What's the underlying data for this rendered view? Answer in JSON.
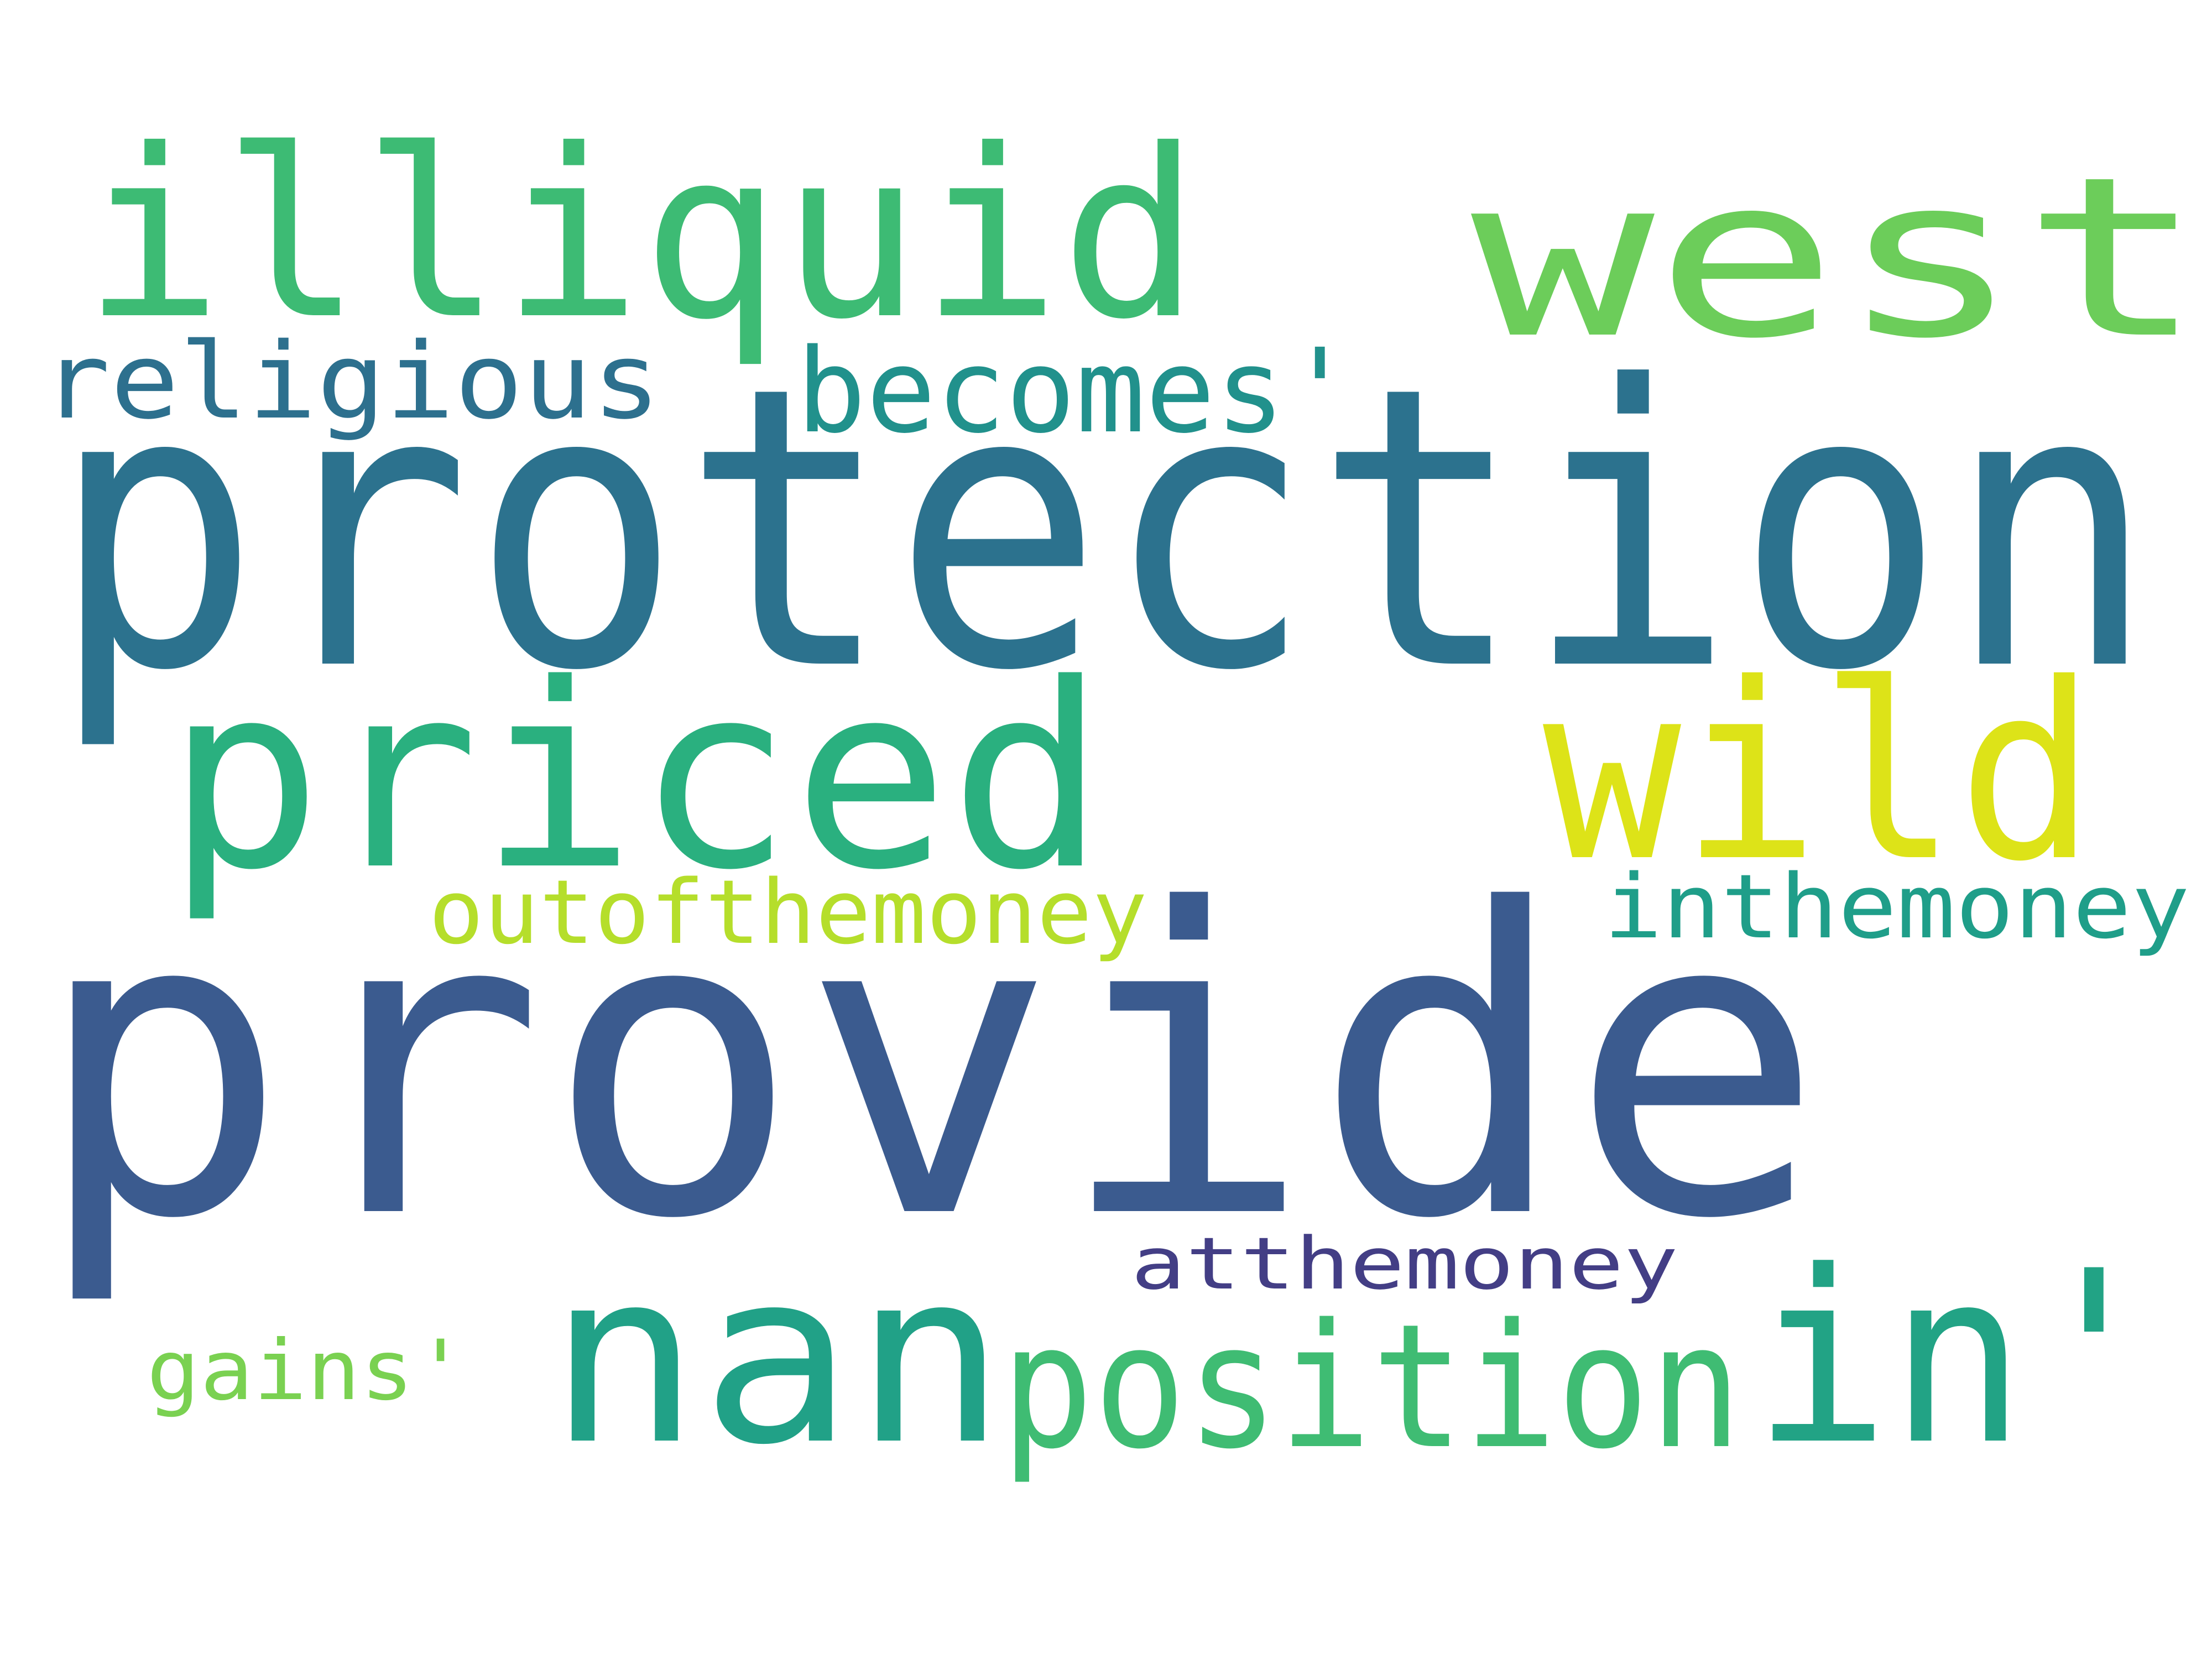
{
  "words": [
    {
      "text": "provide",
      "color": "#3b5b8f"
    },
    {
      "text": "protection",
      "color": "#2c728e"
    },
    {
      "text": "illiquid",
      "color": "#3dbb74"
    },
    {
      "text": "west'",
      "color": "#6ccd5a"
    },
    {
      "text": "religious",
      "color": "#2d708e"
    },
    {
      "text": "becomes'",
      "color": "#21918c"
    },
    {
      "text": "priced",
      "color": "#2ab07f"
    },
    {
      "text": "wild",
      "color": "#dde318"
    },
    {
      "text": "outofthemoney",
      "color": "#b5de2b"
    },
    {
      "text": "inthemoney",
      "color": "#1f9e89"
    },
    {
      "text": "nan",
      "color": "#21a187"
    },
    {
      "text": "in'",
      "color": "#22a385"
    },
    {
      "text": "atthemoney",
      "color": "#433e85"
    },
    {
      "text": "gains'",
      "color": "#7ad151"
    },
    {
      "text": "position",
      "color": "#3fbc73"
    }
  ]
}
